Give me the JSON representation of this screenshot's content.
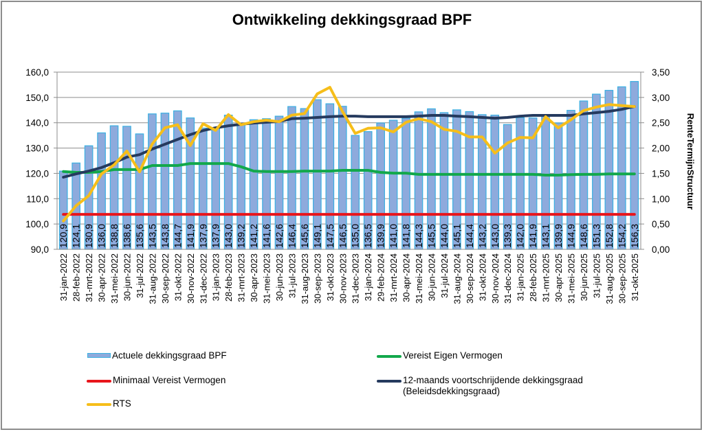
{
  "chart_data": {
    "type": "bar",
    "title": "Ontwikkeling dekkingsgraad BPF",
    "xlabel": "",
    "ylabel": "",
    "y2label": "RenteTermijnStructuur",
    "ylim": [
      90,
      160
    ],
    "y2lim": [
      0,
      3.5
    ],
    "yticks": [
      "90,0",
      "100,0",
      "110,0",
      "120,0",
      "130,0",
      "140,0",
      "150,0",
      "160,0"
    ],
    "y2ticks": [
      "0,00",
      "0,50",
      "1,00",
      "1,50",
      "2,00",
      "2,50",
      "3,00",
      "3,50"
    ],
    "grid": true,
    "legend_position": "bottom",
    "categories": [
      "31-jan-2022",
      "28-feb-2022",
      "31-mrt-2022",
      "30-apr-2022",
      "31-mei-2022",
      "30-jun-2022",
      "31-jul-2022",
      "31-aug-2022",
      "30-sep-2022",
      "31-okt-2022",
      "30-nov-2022",
      "31-dec-2022",
      "31-jan-2023",
      "28-feb-2023",
      "31-mrt-2023",
      "30-apr-2023",
      "31-mei-2023",
      "30-jun-2023",
      "31-jul-2023",
      "31-aug-2023",
      "30-sep-2023",
      "31-okt-2023",
      "30-nov-2023",
      "31-dec-2023",
      "31-jan-2024",
      "29-feb-2024",
      "31-mrt-2024",
      "30-apr-2024",
      "31-mei-2024",
      "30-jun-2024",
      "31-jul-2024",
      "31-aug-2024",
      "30-sep-2024",
      "31-okt-2024",
      "30-nov-2024",
      "31-dec-2024",
      "31-jan-2025",
      "28-feb-2025",
      "31-mrt-2025",
      "30-apr-2025",
      "31-mei-2025",
      "30-jun-2025",
      "31-jul-2025",
      "31-aug-2025",
      "30-sep-2025",
      "31-okt-2025"
    ],
    "series": [
      {
        "name": "Actuele dekkingsgraad BPF",
        "type": "bar",
        "axis": "left",
        "color": "#8eaadc",
        "edge_color": "#3ab0e2",
        "values": [
          120.9,
          124.1,
          130.9,
          136.0,
          138.8,
          138.6,
          135.6,
          143.5,
          143.8,
          144.7,
          141.9,
          137.9,
          137.9,
          143.0,
          139.2,
          141.2,
          141.6,
          142.6,
          146.4,
          145.6,
          149.1,
          147.5,
          146.5,
          135.0,
          136.5,
          139.9,
          141.0,
          141.8,
          144.3,
          145.5,
          144.0,
          145.1,
          144.4,
          143.2,
          143.0,
          139.3,
          142.0,
          141.9,
          143.1,
          139.9,
          144.9,
          148.6,
          151.3,
          152.8,
          154.2,
          156.3
        ],
        "labels": [
          "120,9",
          "124,1",
          "130,9",
          "136,0",
          "138,8",
          "138,6",
          "135,6",
          "143,5",
          "143,8",
          "144,7",
          "141,9",
          "137,9",
          "137,9",
          "143,0",
          "139,2",
          "141,2",
          "141,6",
          "142,6",
          "146,4",
          "145,6",
          "149,1",
          "147,5",
          "146,5",
          "135,0",
          "136,5",
          "139,9",
          "141,0",
          "141,8",
          "144,3",
          "145,5",
          "144,0",
          "145,1",
          "144,4",
          "143,2",
          "143,0",
          "139,3",
          "142,0",
          "141,9",
          "143,1",
          "139,9",
          "144,9",
          "148,6",
          "151,3",
          "152,8",
          "154,2",
          "156,3"
        ]
      },
      {
        "name": "Vereist Eigen Vermogen",
        "type": "line",
        "axis": "left",
        "color": "#12a84b",
        "values": [
          120.7,
          120.4,
          120.4,
          120.7,
          121.5,
          121.5,
          121.5,
          123.1,
          123.1,
          123.1,
          123.9,
          123.9,
          123.9,
          123.9,
          122.6,
          120.9,
          120.7,
          120.7,
          120.7,
          120.9,
          120.9,
          120.9,
          121.2,
          121.2,
          121.2,
          120.4,
          120.1,
          120.1,
          119.6,
          119.6,
          119.6,
          119.6,
          119.6,
          119.6,
          119.6,
          119.6,
          119.6,
          119.6,
          119.3,
          119.3,
          119.5,
          119.6,
          119.6,
          119.8,
          119.8,
          119.8
        ]
      },
      {
        "name": "Minimaal Vereist Vermogen",
        "type": "line",
        "axis": "left",
        "color": "#e8151b",
        "values": [
          103.8,
          103.8,
          103.8,
          103.8,
          103.8,
          103.8,
          103.8,
          103.8,
          103.8,
          103.8,
          103.8,
          103.8,
          103.8,
          103.8,
          103.8,
          103.8,
          103.8,
          103.8,
          103.8,
          103.8,
          103.8,
          103.8,
          103.8,
          103.8,
          103.8,
          103.8,
          103.8,
          103.8,
          103.8,
          103.8,
          103.8,
          103.8,
          103.8,
          103.8,
          103.8,
          103.8,
          103.8,
          103.8,
          103.8,
          103.8,
          103.8,
          103.8,
          103.8,
          103.8,
          103.8,
          103.8
        ]
      },
      {
        "name": "12-maands voortschrijdende dekkingsgraad (Beleidsdekkingsgraad)",
        "name_line1": "12-maands voortschrijdende dekkingsgraad",
        "name_line2": "(Beleidsdekkingsgraad)",
        "type": "line",
        "axis": "left",
        "color": "#253a5e",
        "values": [
          118.5,
          119.8,
          120.9,
          122.3,
          124.2,
          126.4,
          127.4,
          129.6,
          131.5,
          133.4,
          135.3,
          136.9,
          138.0,
          138.8,
          139.4,
          139.9,
          140.2,
          140.5,
          141.6,
          141.8,
          142.1,
          142.4,
          142.6,
          142.6,
          142.4,
          142.4,
          142.4,
          142.4,
          142.6,
          142.9,
          142.9,
          142.6,
          142.4,
          142.1,
          141.8,
          142.1,
          142.6,
          142.9,
          142.9,
          142.9,
          142.9,
          143.5,
          144.0,
          144.5,
          145.3,
          146.4
        ]
      },
      {
        "name": "RTS",
        "type": "line",
        "axis": "right",
        "color": "#f6be1a",
        "values": [
          0.56,
          0.86,
          1.06,
          1.49,
          1.67,
          1.94,
          1.53,
          2.08,
          2.4,
          2.46,
          2.05,
          2.48,
          2.35,
          2.66,
          2.46,
          2.52,
          2.55,
          2.52,
          2.65,
          2.68,
          3.07,
          3.2,
          2.72,
          2.29,
          2.39,
          2.4,
          2.32,
          2.51,
          2.58,
          2.52,
          2.37,
          2.33,
          2.22,
          2.22,
          1.9,
          2.1,
          2.21,
          2.2,
          2.62,
          2.4,
          2.56,
          2.74,
          2.81,
          2.86,
          2.84,
          2.82
        ]
      }
    ]
  }
}
